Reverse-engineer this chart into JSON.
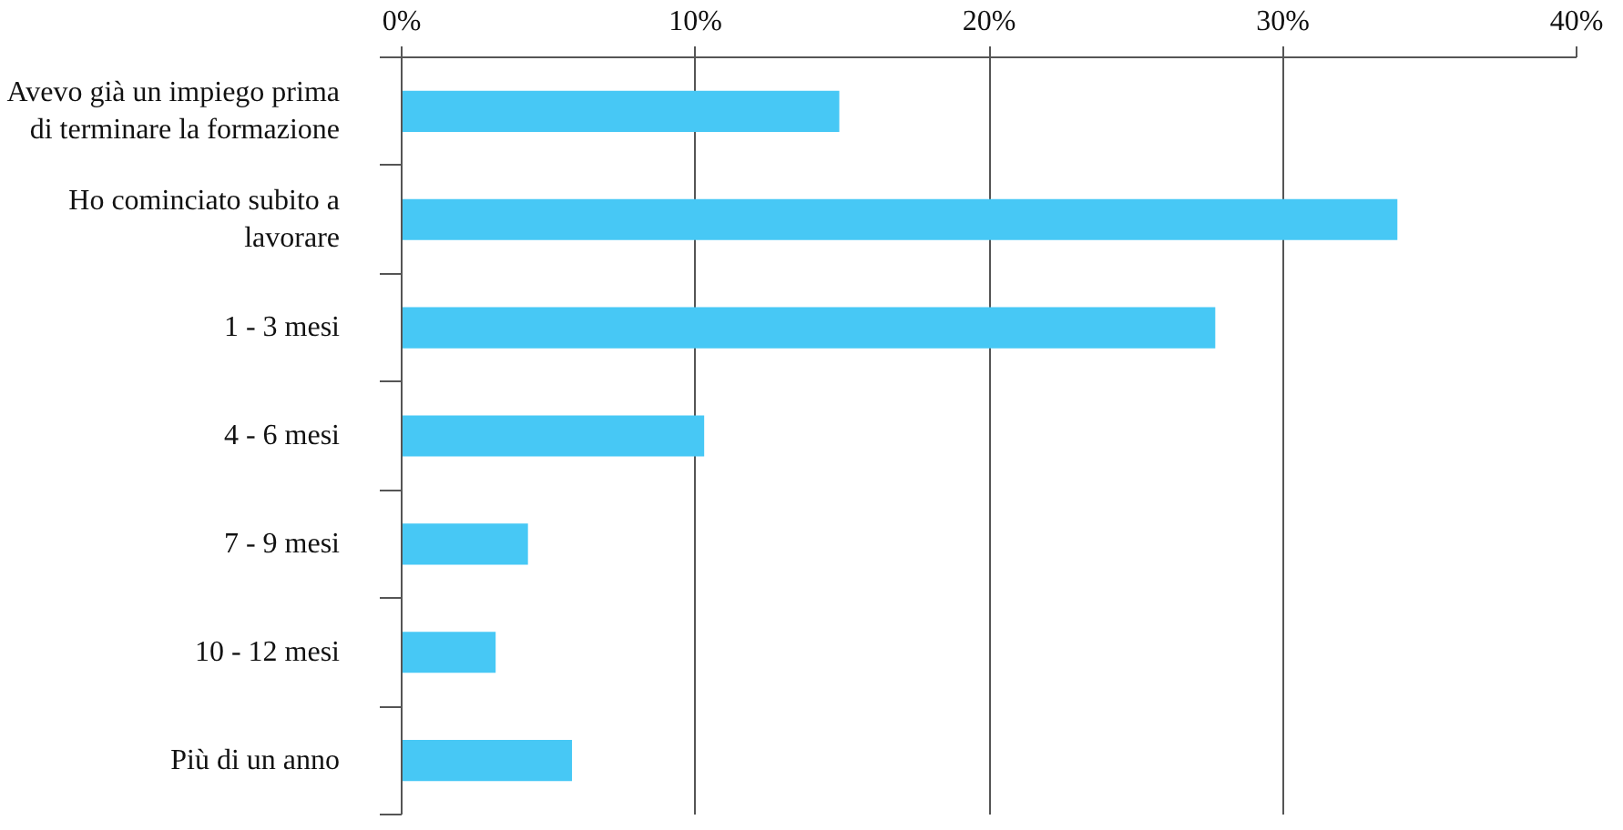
{
  "chart_data": {
    "type": "bar",
    "orientation": "horizontal",
    "categories": [
      "Avevo già un impiego prima di terminare la formazione",
      "Ho cominciato subito a lavorare",
      "1 - 3 mesi",
      "4 - 6 mesi",
      "7 - 9 mesi",
      "10 - 12 mesi",
      "Più di un anno"
    ],
    "values": [
      14.9,
      33.9,
      27.7,
      10.3,
      4.3,
      3.2,
      5.8
    ],
    "color": "#47c8f5",
    "xlim": [
      0,
      40
    ],
    "xticks": [
      {
        "value": 0,
        "label": "0%"
      },
      {
        "value": 10,
        "label": "10%"
      },
      {
        "value": 20,
        "label": "20%"
      },
      {
        "value": 30,
        "label": "30%"
      },
      {
        "value": 40,
        "label": "40%"
      }
    ],
    "grid": "x"
  }
}
